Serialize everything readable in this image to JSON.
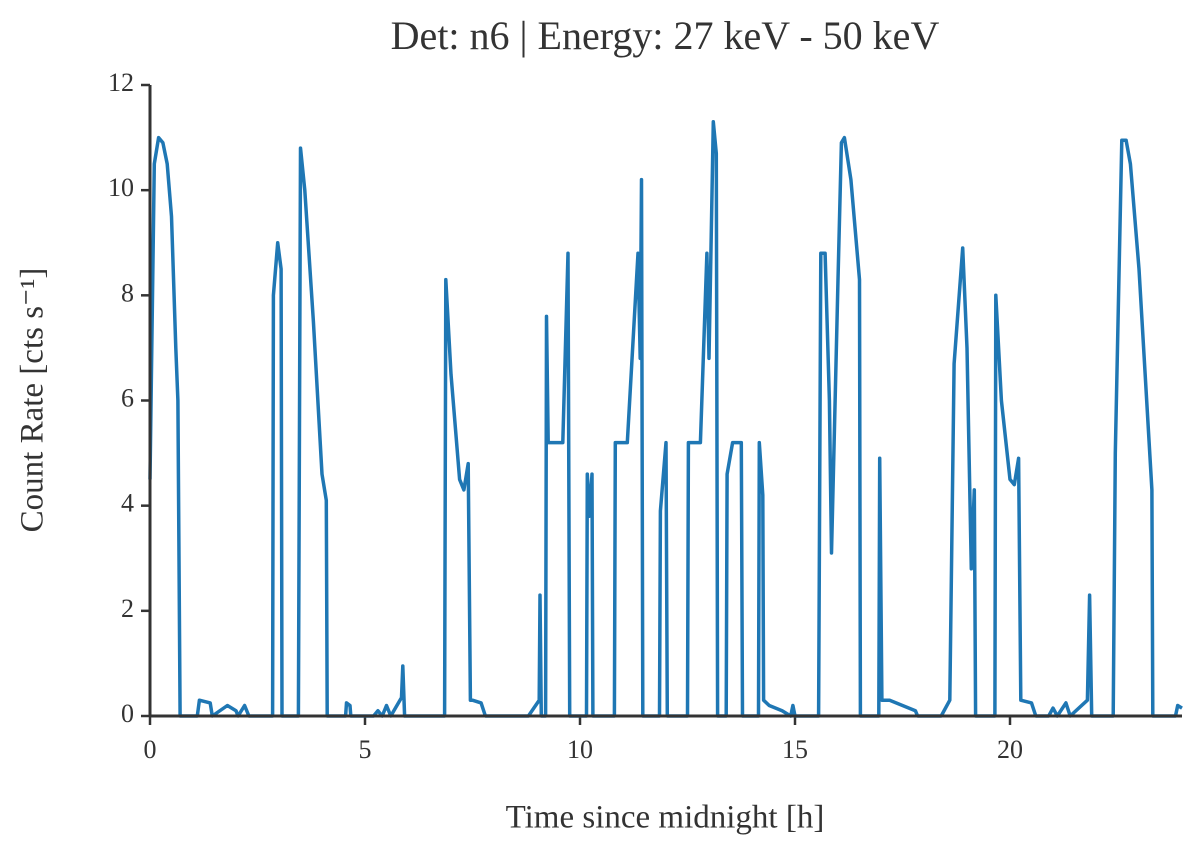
{
  "chart_data": {
    "type": "line",
    "title": "Det: n6 | Energy: 27 keV - 50 keV",
    "xlabel": "Time since midnight [h]",
    "ylabel": "Count Rate [cts s⁻¹]",
    "xlim": [
      0,
      24
    ],
    "xticks": [
      0,
      5,
      10,
      15,
      20
    ],
    "ylim": [
      0,
      12
    ],
    "yticks": [
      0,
      2,
      4,
      6,
      8,
      10,
      12
    ],
    "x": [
      0,
      0.1,
      0.2,
      0.3,
      0.4,
      0.5,
      0.6,
      0.65,
      0.7,
      1.1,
      1.15,
      1.4,
      1.45,
      1.8,
      2.0,
      2.05,
      2.2,
      2.3,
      2.85,
      2.87,
      2.97,
      3.05,
      3.07,
      3.45,
      3.5,
      3.6,
      3.8,
      4.0,
      4.1,
      4.12,
      4.55,
      4.57,
      4.65,
      4.67,
      5.2,
      5.3,
      5.4,
      5.5,
      5.6,
      5.85,
      5.88,
      5.92,
      6.85,
      6.88,
      7.0,
      7.2,
      7.3,
      7.4,
      7.45,
      7.5,
      7.7,
      7.8,
      8.8,
      9.05,
      9.07,
      9.1,
      9.2,
      9.22,
      9.26,
      9.6,
      9.72,
      9.76,
      10.15,
      10.17,
      10.22,
      10.28,
      10.3,
      10.8,
      10.82,
      11.1,
      11.35,
      11.4,
      11.43,
      11.46,
      11.85,
      11.87,
      12.0,
      12.03,
      12.5,
      12.52,
      12.8,
      12.95,
      13.0,
      13.1,
      13.17,
      13.2,
      13.4,
      13.42,
      13.55,
      13.75,
      13.78,
      14.15,
      14.17,
      14.25,
      14.27,
      14.4,
      14.7,
      14.9,
      14.95,
      15.0,
      15.55,
      15.6,
      15.7,
      15.8,
      15.85,
      16.0,
      16.08,
      16.15,
      16.3,
      16.5,
      16.52,
      16.95,
      16.97,
      17.02,
      17.2,
      17.8,
      17.85,
      18.4,
      18.6,
      18.7,
      18.9,
      19.0,
      19.1,
      19.17,
      19.2,
      19.65,
      19.67,
      19.8,
      20.0,
      20.1,
      20.2,
      20.25,
      20.5,
      20.6,
      20.9,
      21.0,
      21.1,
      21.3,
      21.4,
      21.8,
      21.85,
      21.9,
      22.4,
      22.45,
      22.6,
      22.7,
      22.8,
      23.0,
      23.3,
      23.32,
      23.85,
      23.9,
      24.0
    ],
    "series": [
      {
        "color": "#1f77b4",
        "values": [
          4.5,
          10.5,
          11,
          10.9,
          10.5,
          9.5,
          7,
          6,
          0,
          0,
          0.3,
          0.25,
          0,
          0.2,
          0.1,
          0,
          0.2,
          0,
          0,
          8,
          9,
          8.5,
          0,
          0,
          10.8,
          10,
          7.5,
          4.6,
          4.1,
          0,
          0,
          0.25,
          0.2,
          0,
          0,
          0.1,
          0,
          0.2,
          0,
          0.35,
          0.95,
          0,
          0,
          8.3,
          6.5,
          4.5,
          4.3,
          4.8,
          0.3,
          0.3,
          0.25,
          0,
          0,
          0.3,
          2.3,
          0,
          0,
          7.6,
          5.2,
          5.2,
          8.8,
          0,
          0,
          4.6,
          3.8,
          4.6,
          0,
          0,
          5.2,
          5.2,
          8.8,
          6.8,
          10.2,
          0,
          0,
          3.9,
          5.2,
          0,
          0,
          5.2,
          5.2,
          8.8,
          6.8,
          11.3,
          10.7,
          0,
          0,
          4.6,
          5.2,
          5.2,
          0,
          0,
          5.2,
          4.2,
          0.3,
          0.2,
          0.1,
          0,
          0.2,
          0,
          0,
          8.8,
          8.8,
          6,
          3.1,
          8.3,
          10.9,
          11,
          10.2,
          8.3,
          0,
          0,
          4.9,
          0.3,
          0.3,
          0.1,
          0,
          0,
          0.3,
          6.7,
          8.9,
          7,
          2.8,
          4.3,
          0,
          0,
          8,
          6,
          4.5,
          4.4,
          4.9,
          0.3,
          0.25,
          0,
          0,
          0.15,
          0,
          0.25,
          0,
          0.3,
          2.3,
          0,
          0,
          5,
          10.95,
          10.95,
          10.5,
          8.5,
          4.3,
          0,
          0,
          0.2,
          0.15
        ]
      }
    ]
  }
}
